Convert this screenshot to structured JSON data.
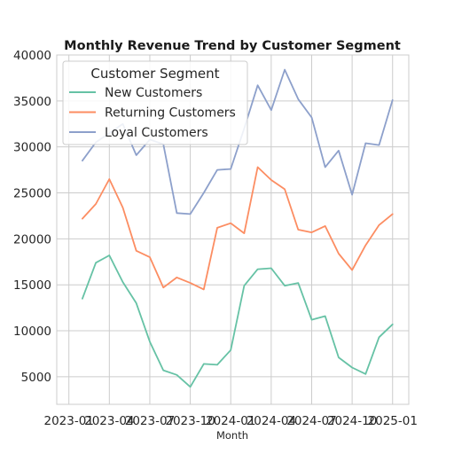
{
  "chart_data": {
    "type": "line",
    "title": "Monthly Revenue Trend by Customer Segment",
    "xlabel": "Month",
    "ylabel": "",
    "x_start": "2023-02",
    "x_ticks": [
      "2023-01",
      "2023-04",
      "2023-07",
      "2023-10",
      "2024-01",
      "2024-04",
      "2024-07",
      "2024-10",
      "2025-01"
    ],
    "ylim": [
      2000,
      40000
    ],
    "yticks": [
      5000,
      10000,
      15000,
      20000,
      25000,
      30000,
      35000,
      40000
    ],
    "grid": true,
    "legend": {
      "title": "Customer Segment",
      "placement": "top-left"
    },
    "x": [
      "2023-02",
      "2023-03",
      "2023-04",
      "2023-05",
      "2023-06",
      "2023-07",
      "2023-08",
      "2023-09",
      "2023-10",
      "2023-11",
      "2023-12",
      "2024-01",
      "2024-02",
      "2024-03",
      "2024-04",
      "2024-05",
      "2024-06",
      "2024-07",
      "2024-08",
      "2024-09",
      "2024-10",
      "2024-11",
      "2024-12",
      "2025-01"
    ],
    "series": [
      {
        "name": "New Customers",
        "color": "#66c2a5",
        "values": [
          13500,
          17400,
          18200,
          15300,
          13000,
          8800,
          5700,
          5200,
          3900,
          6400,
          6300,
          7900,
          14900,
          16700,
          16800,
          14900,
          15200,
          11200,
          11600,
          7100,
          6000,
          5300,
          9300,
          10700
        ]
      },
      {
        "name": "Returning Customers",
        "color": "#fc8d62",
        "values": [
          22200,
          23800,
          26500,
          23400,
          18700,
          18000,
          14700,
          15800,
          15200,
          14500,
          21200,
          21700,
          20600,
          27800,
          26400,
          25400,
          21000,
          20700,
          21400,
          18400,
          16600,
          19300,
          21500,
          22700
        ]
      },
      {
        "name": "Loyal Customers",
        "color": "#8da0cb",
        "values": [
          28500,
          30500,
          31500,
          32500,
          29100,
          30800,
          30300,
          22800,
          22700,
          25000,
          27500,
          27600,
          32000,
          36700,
          34000,
          38400,
          35200,
          33200,
          27800,
          29600,
          24800,
          30400,
          30200,
          35100
        ]
      }
    ]
  }
}
